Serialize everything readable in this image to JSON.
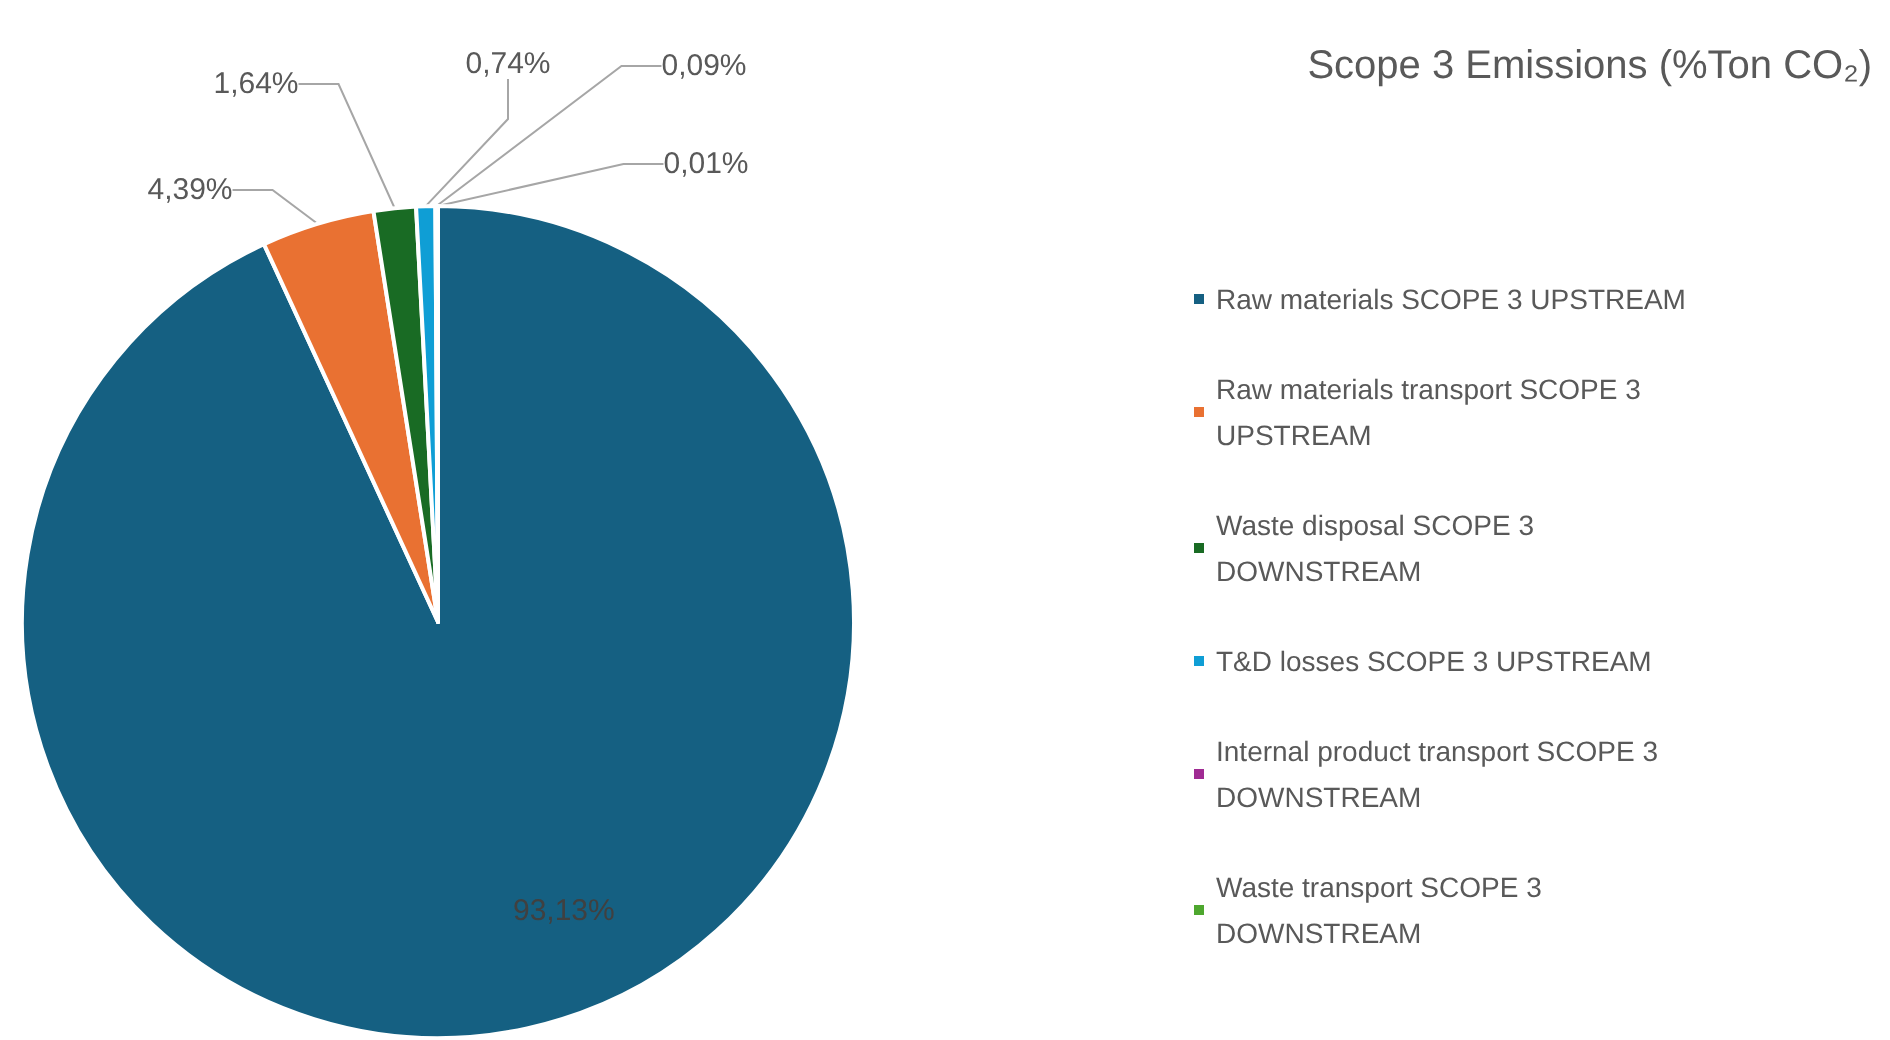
{
  "chart_data": {
    "type": "pie",
    "title": "Scope 3 Emissions (%Ton CO₂)",
    "categories": [
      "Raw materials SCOPE 3 UPSTREAM",
      "Raw materials transport SCOPE 3 UPSTREAM",
      "Waste disposal SCOPE 3 DOWNSTREAM",
      "T&D losses SCOPE 3 UPSTREAM",
      "Internal product transport SCOPE 3 DOWNSTREAM",
      "Waste transport SCOPE 3 DOWNSTREAM"
    ],
    "values": [
      93.13,
      4.39,
      1.64,
      0.74,
      0.09,
      0.01
    ],
    "value_labels": [
      "93,13%",
      "4,39%",
      "1,64%",
      "0,74%",
      "0,09%",
      "0,01%"
    ],
    "colors": [
      "#156082",
      "#e97132",
      "#196b24",
      "#0f9ed5",
      "#a02b93",
      "#4ea72e"
    ],
    "legend": "right"
  }
}
